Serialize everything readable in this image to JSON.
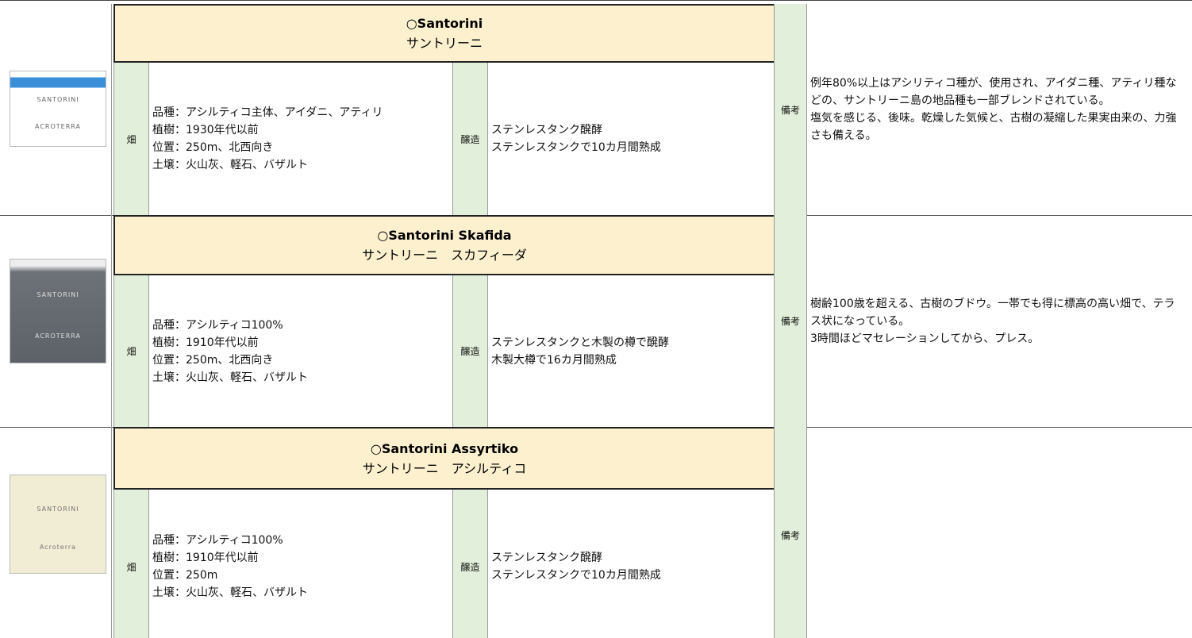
{
  "wines": [
    {
      "label_image": {
        "lines": [
          "SANTORINI",
          "ACROTERRA"
        ]
      },
      "name_en": "○Santorini",
      "name_ja": "サントリーニ",
      "vineyard_label": "畑",
      "vineyard": [
        "品種：アシルティコ主体、アイダニ、アティリ",
        "植樹：1930年代以前",
        "位置：250m、北西向き",
        "土壌：火山灰、軽石、バザルト"
      ],
      "vinification_label": "醸造",
      "vinification": [
        "ステンレスタンク醗酵",
        "ステンレスタンクで10カ月間熟成"
      ],
      "notes_label": "備考",
      "notes": [
        "例年80%以上はアシリティコ種が、使用され、アイダニ種、アティリ種などの、サントリーニ島の地品種も一部ブレンドされている。",
        "塩気を感じる、後味。乾燥した気候と、古樹の凝縮した果実由来の、力強さも備える。"
      ]
    },
    {
      "label_image": {
        "lines": [
          "SANTORINI",
          "ACROTERRA"
        ]
      },
      "name_en": "○Santorini Skafida",
      "name_ja": "サントリーニ　スカフィーダ",
      "vineyard_label": "畑",
      "vineyard": [
        "品種：アシルティコ100%",
        "植樹：1910年代以前",
        "位置：250m、北西向き",
        "土壌：火山灰、軽石、バザルト"
      ],
      "vinification_label": "醸造",
      "vinification": [
        "ステンレスタンクと木製の樽で醗酵",
        "木製大樽で16カ月間熟成"
      ],
      "notes_label": "備考",
      "notes": [
        "樹齢100歳を超える、古樹のブドウ。一帯でも得に標高の高い畑で、テラス状になっている。",
        "3時間ほどマセレーションしてから、プレス。"
      ]
    },
    {
      "label_image": {
        "lines": [
          "SANTORINI",
          "Acroterra"
        ]
      },
      "name_en": "○Santorini Assyrtiko",
      "name_ja": "サントリーニ　アシルティコ",
      "vineyard_label": "畑",
      "vineyard": [
        "品種：アシルティコ100%",
        "植樹：1910年代以前",
        "位置：250m",
        "土壌：火山灰、軽石、バザルト"
      ],
      "vinification_label": "醸造",
      "vinification": [
        "ステンレスタンク醗酵",
        "ステンレスタンクで10カ月間熟成"
      ],
      "notes_label": "備考",
      "notes": []
    }
  ]
}
